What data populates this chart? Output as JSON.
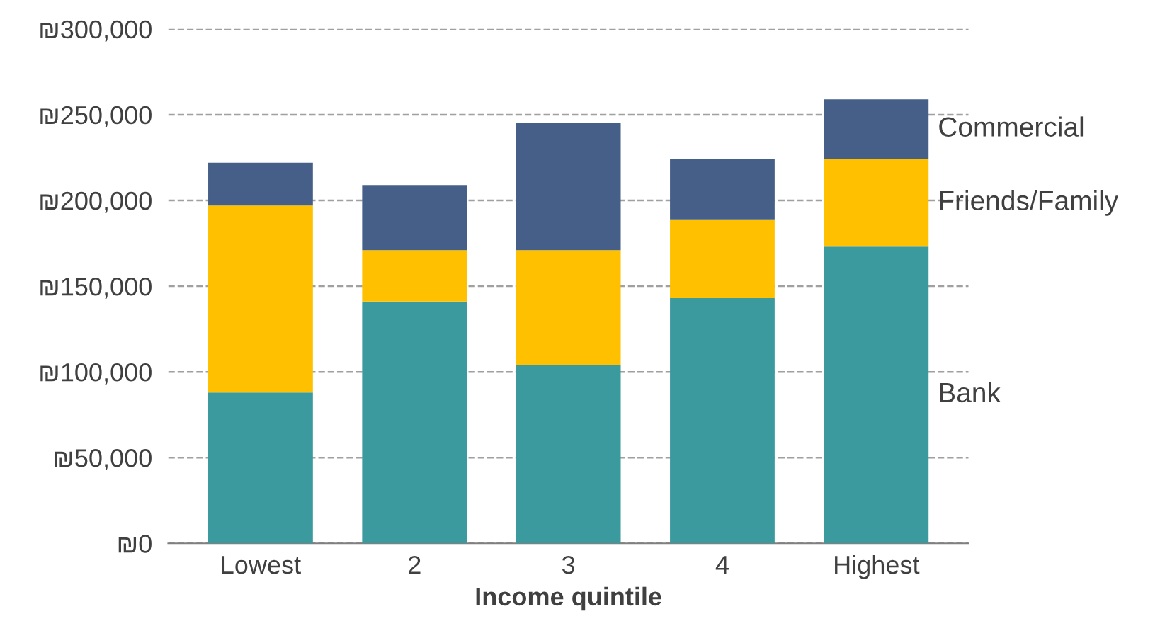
{
  "chart_data": {
    "type": "bar",
    "stacked": true,
    "xlabel": "Income quintile",
    "categories": [
      "Lowest",
      "2",
      "3",
      "4",
      "Highest"
    ],
    "series": [
      {
        "name": "Bank",
        "color": "#3a9a9e",
        "values": [
          88000,
          141000,
          104000,
          143000,
          173000
        ]
      },
      {
        "name": "Friends/Family",
        "color": "#ffc000",
        "values": [
          109000,
          30000,
          67000,
          46000,
          51000
        ]
      },
      {
        "name": "Commercial",
        "color": "#455f88",
        "values": [
          25000,
          38000,
          74000,
          35000,
          35000
        ]
      }
    ],
    "ylim": [
      0,
      300000
    ],
    "yticks": [
      {
        "value": 0,
        "label": "₪0"
      },
      {
        "value": 50000,
        "label": "₪50,000"
      },
      {
        "value": 100000,
        "label": "₪100,000"
      },
      {
        "value": 150000,
        "label": "₪150,000"
      },
      {
        "value": 200000,
        "label": "₪200,000"
      },
      {
        "value": 250000,
        "label": "₪250,000"
      },
      {
        "value": 300000,
        "label": "₪300,000"
      }
    ],
    "grid": "y",
    "line_style": "dashed"
  }
}
